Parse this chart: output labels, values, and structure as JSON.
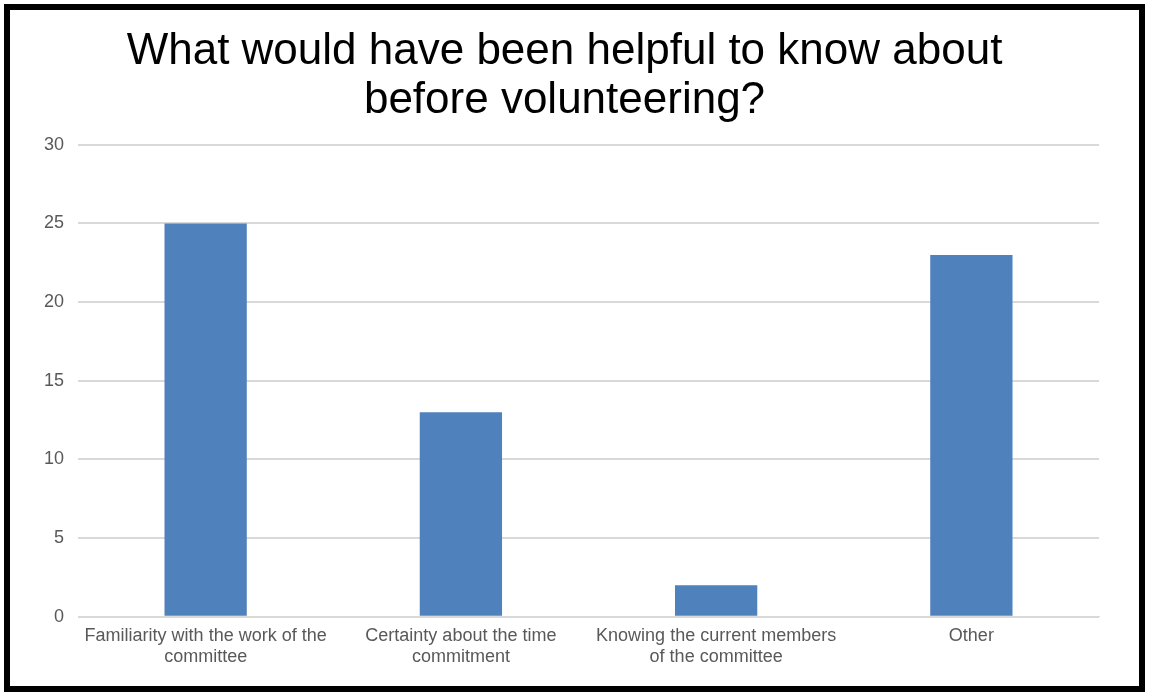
{
  "chart_data": {
    "type": "bar",
    "title": "What would have been helpful to know about before volunteering?",
    "categories": [
      "Familiarity with the work of the committee",
      "Certainty about the time commitment",
      "Knowing the current members of the committee",
      "Other"
    ],
    "values": [
      25,
      13,
      2,
      23
    ],
    "color": "#4f81bd",
    "ylim": [
      0,
      30
    ],
    "yticks": [
      0,
      5,
      10,
      15,
      20,
      25,
      30
    ],
    "grid": "y",
    "legend": false
  }
}
